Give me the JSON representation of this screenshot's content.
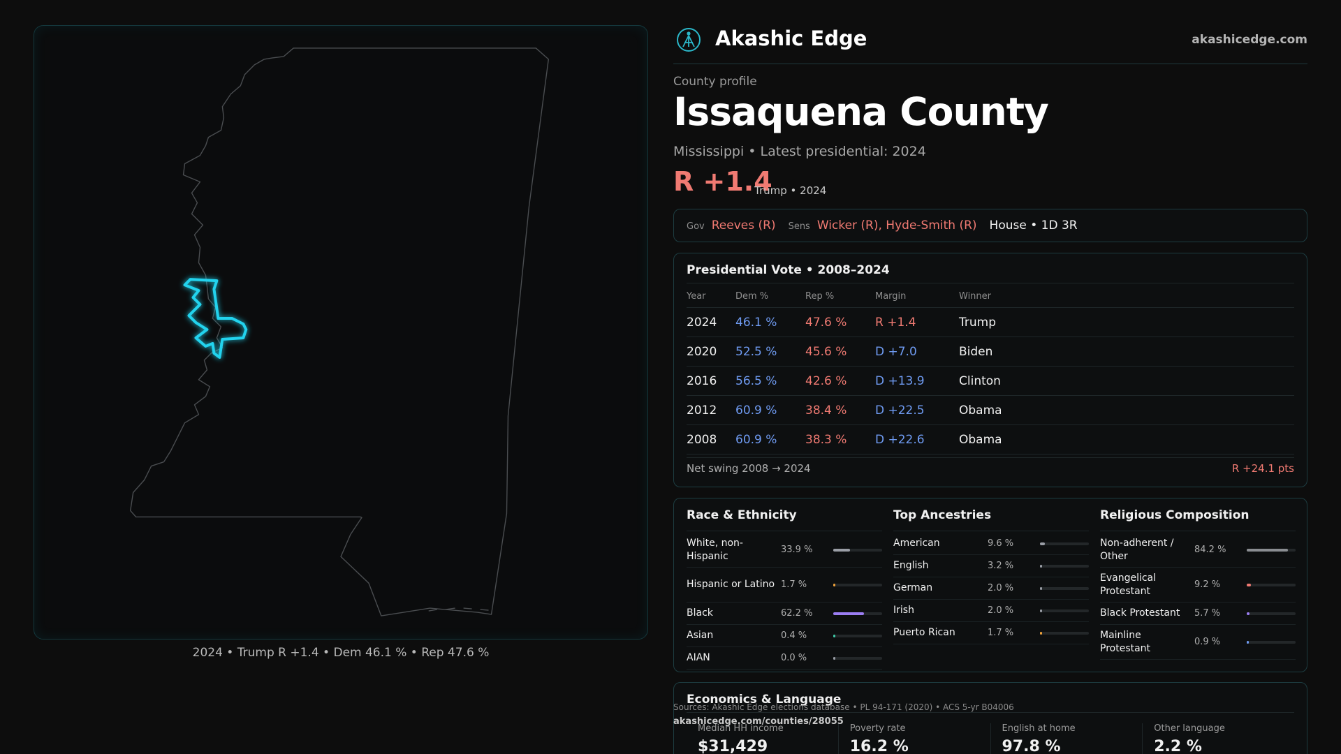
{
  "brand": {
    "name": "Akashic Edge",
    "url": "akashicedge.com"
  },
  "profile": {
    "eyebrow": "County profile",
    "county": "Issaquena County",
    "subtitle": "Mississippi • Latest presidential: 2024",
    "margin": "R +1.4",
    "margin_note": "Trump • 2024"
  },
  "officials": {
    "gov_label": "Gov",
    "gov": "Reeves (R)",
    "sens_label": "Sens",
    "sens": "Wicker (R), Hyde-Smith (R)",
    "house": "House • 1D 3R"
  },
  "presidential": {
    "title": "Presidential Vote • 2008–2024",
    "headers": {
      "year": "Year",
      "dem": "Dem %",
      "rep": "Rep %",
      "margin": "Margin",
      "winner": "Winner"
    },
    "rows": [
      {
        "year": "2024",
        "dem": "46.1 %",
        "rep": "47.6 %",
        "margin": "R +1.4",
        "winner": "Trump",
        "margin_color": "#f07a72"
      },
      {
        "year": "2020",
        "dem": "52.5 %",
        "rep": "45.6 %",
        "margin": "D +7.0",
        "winner": "Biden",
        "margin_color": "#6f9bf2"
      },
      {
        "year": "2016",
        "dem": "56.5 %",
        "rep": "42.6 %",
        "margin": "D +13.9",
        "winner": "Clinton",
        "margin_color": "#6f9bf2"
      },
      {
        "year": "2012",
        "dem": "60.9 %",
        "rep": "38.4 %",
        "margin": "D +22.5",
        "winner": "Obama",
        "margin_color": "#6f9bf2"
      },
      {
        "year": "2008",
        "dem": "60.9 %",
        "rep": "38.3 %",
        "margin": "D +22.6",
        "winner": "Obama",
        "margin_color": "#6f9bf2"
      }
    ],
    "net_swing_label": "Net swing 2008 → 2024",
    "net_swing_value": "R +24.1 pts"
  },
  "race": {
    "title": "Race & Ethnicity",
    "items": [
      {
        "label": "White, non-Hispanic",
        "value": "33.9 %",
        "fraction": 0.339,
        "color": "#9a9ea6"
      },
      {
        "label": "Hispanic or Latino",
        "value": "1.7 %",
        "fraction": 0.017,
        "color": "#f0a23a"
      },
      {
        "label": "Black",
        "value": "62.2 %",
        "fraction": 0.622,
        "color": "#9b7ef2"
      },
      {
        "label": "Asian",
        "value": "0.4 %",
        "fraction": 0.004,
        "color": "#3ec9a7"
      },
      {
        "label": "AIAN",
        "value": "0.0 %",
        "fraction": 0.0,
        "color": "#9a9ea6"
      }
    ]
  },
  "ancestry": {
    "title": "Top Ancestries",
    "items": [
      {
        "label": "American",
        "value": "9.6 %",
        "fraction": 0.096,
        "color": "#9a9ea6"
      },
      {
        "label": "English",
        "value": "3.2 %",
        "fraction": 0.032,
        "color": "#9a9ea6"
      },
      {
        "label": "German",
        "value": "2.0 %",
        "fraction": 0.02,
        "color": "#9a9ea6"
      },
      {
        "label": "Irish",
        "value": "2.0 %",
        "fraction": 0.02,
        "color": "#9a9ea6"
      },
      {
        "label": "Puerto Rican",
        "value": "1.7 %",
        "fraction": 0.017,
        "color": "#f0a23a"
      }
    ]
  },
  "religion": {
    "title": "Religious Composition",
    "items": [
      {
        "label": "Non-adherent / Other",
        "value": "84.2 %",
        "fraction": 0.842,
        "color": "#8a8d92"
      },
      {
        "label": "Evangelical Protestant",
        "value": "9.2 %",
        "fraction": 0.092,
        "color": "#f07a72"
      },
      {
        "label": "Black Protestant",
        "value": "5.7 %",
        "fraction": 0.057,
        "color": "#9b7ef2"
      },
      {
        "label": "Mainline Protestant",
        "value": "0.9 %",
        "fraction": 0.009,
        "color": "#6f9bf2"
      }
    ]
  },
  "economics": {
    "title": "Economics & Language",
    "cells": [
      {
        "label": "Median HH income",
        "value": "$31,429"
      },
      {
        "label": "Poverty rate",
        "value": "16.2 %"
      },
      {
        "label": "English at home",
        "value": "97.8 %"
      },
      {
        "label": "Other language",
        "value": "2.2 %"
      }
    ]
  },
  "map": {
    "caption": "2024 • Trump R +1.4 • Dem 46.1 % • Rep 47.6 %",
    "highlight_color": "#22d3ee"
  },
  "footer": {
    "sources": "Sources: Akashic Edge elections database • PL 94-171 (2020) • ACS 5-yr B04006",
    "permalink": "akashicedge.com/counties/28055"
  }
}
